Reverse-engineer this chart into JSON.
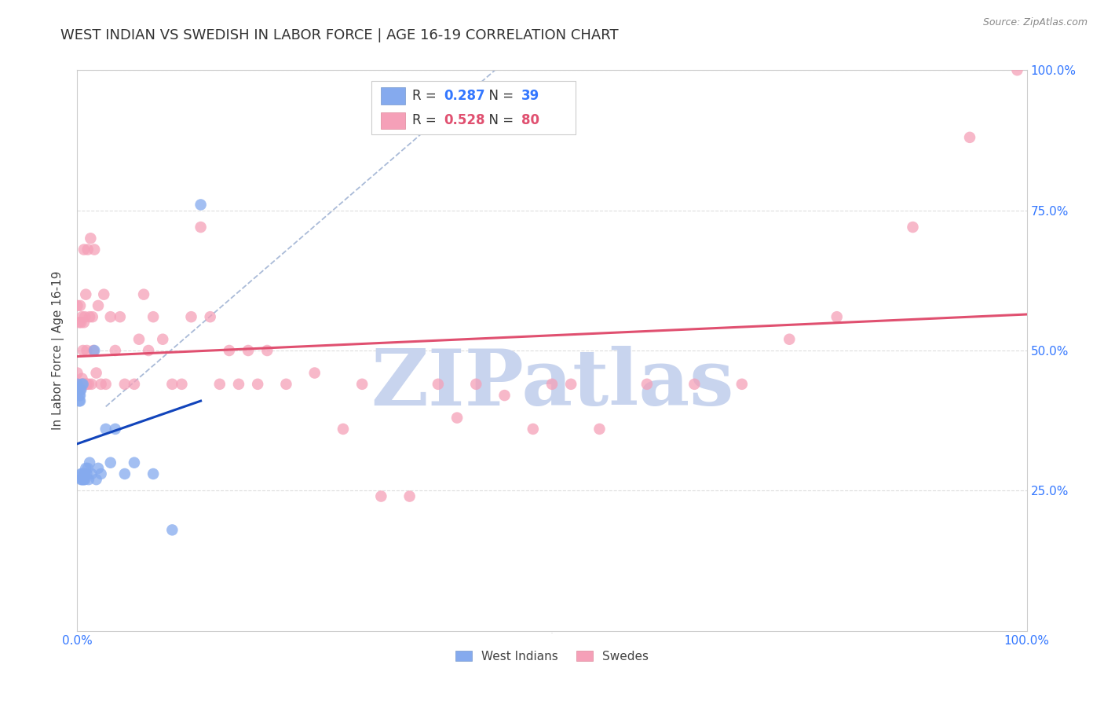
{
  "title": "WEST INDIAN VS SWEDISH IN LABOR FORCE | AGE 16-19 CORRELATION CHART",
  "source": "Source: ZipAtlas.com",
  "ylabel": "In Labor Force | Age 16-19",
  "xlim": [
    0.0,
    1.0
  ],
  "ylim": [
    0.0,
    1.0
  ],
  "xtick_labels": [
    "0.0%",
    "",
    "",
    "",
    "100.0%"
  ],
  "ytick_labels": [
    "25.0%",
    "50.0%",
    "75.0%",
    "100.0%"
  ],
  "yticks": [
    0.25,
    0.5,
    0.75,
    1.0
  ],
  "west_indian_R": 0.287,
  "west_indian_N": 39,
  "swedish_R": 0.528,
  "swedish_N": 80,
  "west_indian_color": "#85AAEE",
  "swedish_color": "#F5A0B8",
  "west_indian_line_color": "#1144BB",
  "swedish_line_color": "#E05070",
  "dashed_line_color": "#AABBD8",
  "background_color": "#FFFFFF",
  "grid_color": "#DDDDDD",
  "tick_color": "#3377FF",
  "axis_color": "#CCCCCC",
  "title_fontsize": 13,
  "label_fontsize": 11,
  "tick_fontsize": 11,
  "watermark_color": "#C8D4EE",
  "watermark_fontsize": 72,
  "west_indian_x": [
    0.0,
    0.0,
    0.0,
    0.0,
    0.002,
    0.002,
    0.003,
    0.003,
    0.003,
    0.004,
    0.004,
    0.004,
    0.005,
    0.005,
    0.005,
    0.006,
    0.006,
    0.007,
    0.007,
    0.008,
    0.008,
    0.009,
    0.01,
    0.011,
    0.012,
    0.013,
    0.015,
    0.018,
    0.02,
    0.022,
    0.025,
    0.03,
    0.035,
    0.04,
    0.05,
    0.06,
    0.08,
    0.1,
    0.13
  ],
  "west_indian_y": [
    0.42,
    0.43,
    0.43,
    0.44,
    0.41,
    0.42,
    0.41,
    0.42,
    0.43,
    0.27,
    0.28,
    0.43,
    0.27,
    0.28,
    0.44,
    0.27,
    0.44,
    0.27,
    0.28,
    0.27,
    0.28,
    0.29,
    0.28,
    0.29,
    0.27,
    0.3,
    0.28,
    0.5,
    0.27,
    0.29,
    0.28,
    0.36,
    0.3,
    0.36,
    0.28,
    0.3,
    0.28,
    0.18,
    0.76
  ],
  "swedish_x": [
    0.0,
    0.0,
    0.0,
    0.001,
    0.002,
    0.002,
    0.003,
    0.003,
    0.004,
    0.004,
    0.005,
    0.005,
    0.005,
    0.006,
    0.006,
    0.007,
    0.007,
    0.007,
    0.008,
    0.008,
    0.009,
    0.009,
    0.01,
    0.01,
    0.011,
    0.012,
    0.013,
    0.014,
    0.015,
    0.016,
    0.017,
    0.018,
    0.02,
    0.022,
    0.025,
    0.028,
    0.03,
    0.035,
    0.04,
    0.045,
    0.05,
    0.06,
    0.065,
    0.07,
    0.075,
    0.08,
    0.09,
    0.1,
    0.11,
    0.12,
    0.13,
    0.14,
    0.15,
    0.16,
    0.17,
    0.18,
    0.19,
    0.2,
    0.22,
    0.25,
    0.28,
    0.3,
    0.32,
    0.35,
    0.38,
    0.4,
    0.42,
    0.45,
    0.48,
    0.5,
    0.52,
    0.55,
    0.6,
    0.65,
    0.7,
    0.75,
    0.8,
    0.88,
    0.94,
    0.99
  ],
  "swedish_y": [
    0.44,
    0.46,
    0.58,
    0.44,
    0.44,
    0.55,
    0.43,
    0.58,
    0.44,
    0.55,
    0.44,
    0.45,
    0.56,
    0.44,
    0.5,
    0.44,
    0.55,
    0.68,
    0.44,
    0.56,
    0.44,
    0.6,
    0.44,
    0.5,
    0.68,
    0.44,
    0.56,
    0.7,
    0.44,
    0.56,
    0.5,
    0.68,
    0.46,
    0.58,
    0.44,
    0.6,
    0.44,
    0.56,
    0.5,
    0.56,
    0.44,
    0.44,
    0.52,
    0.6,
    0.5,
    0.56,
    0.52,
    0.44,
    0.44,
    0.56,
    0.72,
    0.56,
    0.44,
    0.5,
    0.44,
    0.5,
    0.44,
    0.5,
    0.44,
    0.46,
    0.36,
    0.44,
    0.24,
    0.24,
    0.44,
    0.38,
    0.44,
    0.42,
    0.36,
    0.44,
    0.44,
    0.36,
    0.44,
    0.44,
    0.44,
    0.52,
    0.56,
    0.72,
    0.88,
    1.0
  ]
}
